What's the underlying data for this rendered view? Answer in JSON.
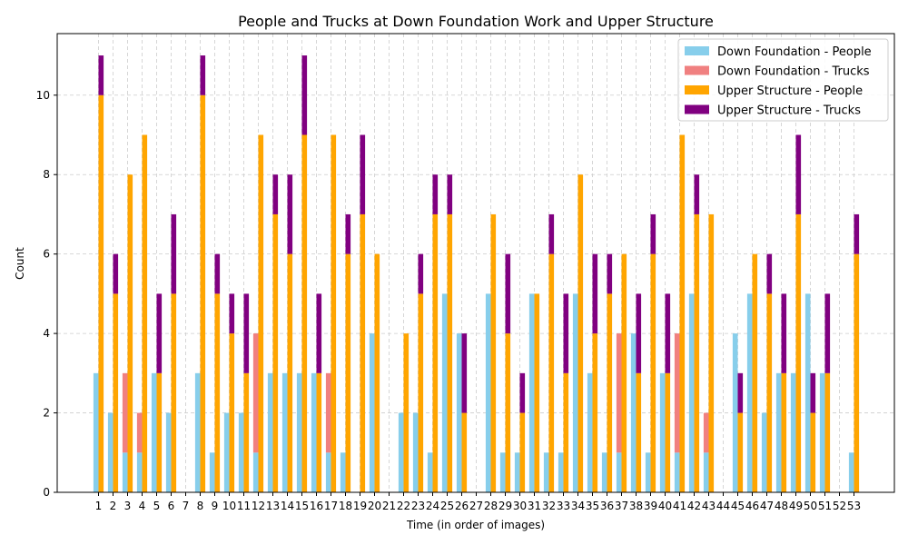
{
  "chart_data": {
    "type": "bar",
    "title": "People and Trucks at Down Foundation Work and Upper Structure",
    "xlabel": "Time (in order of images)",
    "ylabel": "Count",
    "ylim": [
      0,
      11.55
    ],
    "yticks": [
      0,
      2,
      4,
      6,
      8,
      10
    ],
    "categories": [
      "1",
      "2",
      "3",
      "4",
      "5",
      "6",
      "7",
      "8",
      "9",
      "10",
      "11",
      "12",
      "13",
      "14",
      "15",
      "16",
      "17",
      "18",
      "19",
      "20",
      "21",
      "22",
      "23",
      "24",
      "25",
      "26",
      "27",
      "28",
      "29",
      "30",
      "31",
      "32",
      "33",
      "34",
      "35",
      "36",
      "37",
      "38",
      "39",
      "40",
      "41",
      "42",
      "43",
      "44",
      "45",
      "46",
      "47",
      "48",
      "49",
      "50",
      "51",
      "52",
      "53"
    ],
    "grid": true,
    "legend_position": "top-right",
    "series": [
      {
        "name": "Down Foundation - People",
        "color": "#87CEEB",
        "group": "down",
        "stack": "base",
        "values": [
          3,
          2,
          1,
          1,
          3,
          2,
          0,
          3,
          1,
          2,
          2,
          1,
          3,
          3,
          3,
          3,
          1,
          1,
          0,
          4,
          0,
          2,
          2,
          1,
          5,
          4,
          0,
          5,
          1,
          1,
          5,
          1,
          1,
          5,
          3,
          1,
          1,
          4,
          1,
          3,
          1,
          5,
          1,
          0,
          4,
          5,
          2,
          3,
          3,
          5,
          3,
          0,
          1
        ]
      },
      {
        "name": "Down Foundation - Trucks",
        "color": "#F08080",
        "group": "down",
        "stack": "top",
        "values": [
          0,
          0,
          2,
          1,
          0,
          0,
          0,
          0,
          0,
          0,
          0,
          3,
          0,
          0,
          0,
          0,
          2,
          0,
          0,
          0,
          0,
          0,
          0,
          0,
          0,
          0,
          0,
          0,
          0,
          0,
          0,
          0,
          0,
          0,
          0,
          0,
          3,
          0,
          0,
          0,
          3,
          0,
          1,
          0,
          0,
          0,
          0,
          0,
          0,
          0,
          0,
          0,
          0
        ]
      },
      {
        "name": "Upper Structure - People",
        "color": "#FFA500",
        "group": "upper",
        "stack": "base",
        "values": [
          10,
          5,
          8,
          9,
          3,
          5,
          0,
          10,
          5,
          4,
          3,
          9,
          7,
          6,
          9,
          3,
          9,
          6,
          7,
          6,
          0,
          4,
          5,
          7,
          7,
          2,
          0,
          7,
          4,
          2,
          5,
          6,
          3,
          8,
          4,
          5,
          6,
          3,
          6,
          3,
          9,
          7,
          7,
          0,
          2,
          6,
          5,
          3,
          7,
          2,
          3,
          0,
          6
        ]
      },
      {
        "name": "Upper Structure - Trucks",
        "color": "#800080",
        "group": "upper",
        "stack": "top",
        "values": [
          1,
          1,
          0,
          0,
          2,
          2,
          0,
          1,
          1,
          1,
          2,
          0,
          1,
          2,
          2,
          2,
          0,
          1,
          2,
          0,
          0,
          0,
          1,
          1,
          1,
          2,
          0,
          0,
          2,
          1,
          0,
          1,
          2,
          0,
          2,
          1,
          0,
          2,
          1,
          2,
          0,
          1,
          0,
          0,
          1,
          0,
          1,
          2,
          2,
          1,
          2,
          0,
          1
        ]
      }
    ]
  }
}
